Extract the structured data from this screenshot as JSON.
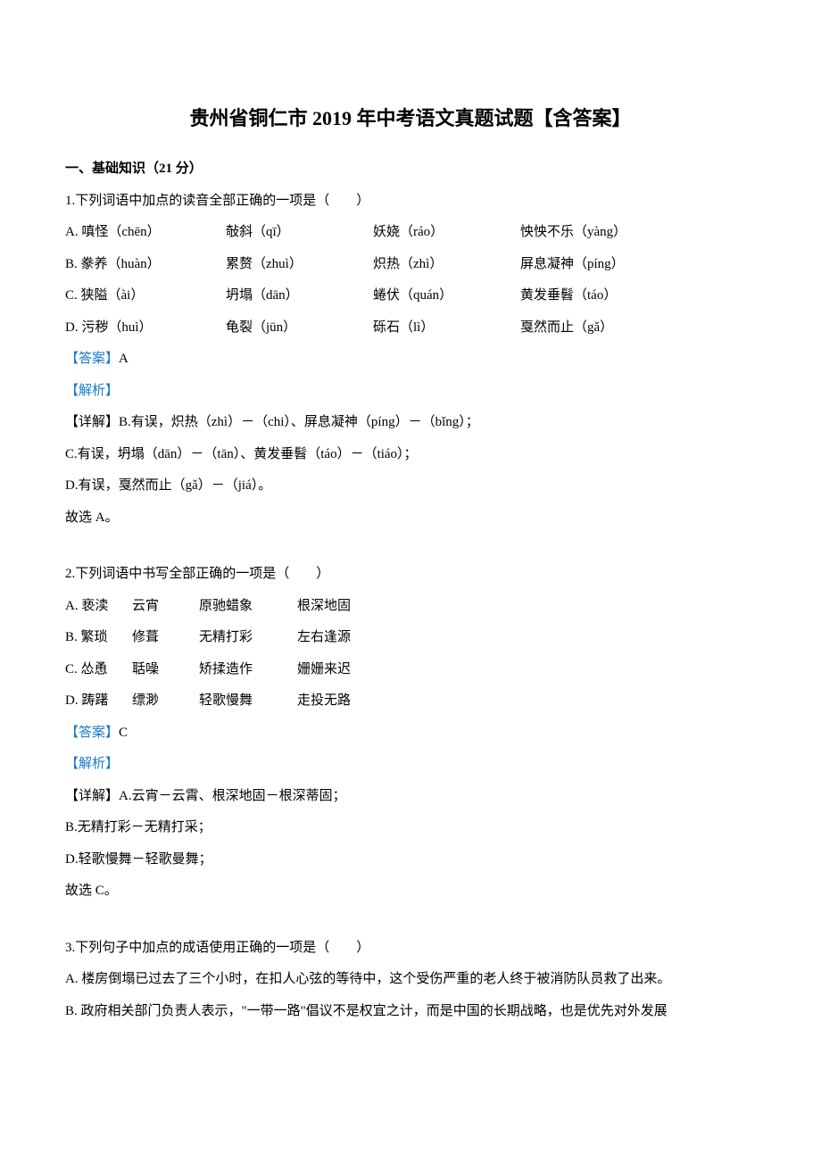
{
  "title": "贵州省铜仁市 2019 年中考语文真题试题【含答案】",
  "section1": {
    "heading": "一、基础知识（21 分）"
  },
  "q1": {
    "stem": "1.下列词语中加点的读音全部正确的一项是（　　）",
    "rows": [
      {
        "a": "A. 嗔怪（chēn）",
        "b": "敧斜（qī）",
        "c": "妖娆（ráo）",
        "d": "怏怏不乐（yàng）"
      },
      {
        "a": "B. 豢养（huàn）",
        "b": "累赘（zhuì）",
        "c": "炽热（zhì）",
        "d": "屏息凝神（píng）"
      },
      {
        "a": "C. 狭隘（ài）",
        "b": "坍塌（dān）",
        "c": "蜷伏（quán）",
        "d": "黄发垂髫（táo）"
      },
      {
        "a": "D. 污秽（huì）",
        "b": "龟裂（jūn）",
        "c": "砾石（lì）",
        "d": "戛然而止（gǎ）"
      }
    ],
    "answerLabel": "【答案】",
    "answerValue": "A",
    "analysisLabel": "【解析】",
    "details": [
      "【详解】B.有误，炽热（zhì）－（chi）、屏息凝神（píng）－（bǐng）；",
      "C.有误，坍塌（dān）－（tān）、黄发垂髫（táo）－（tiáo）；",
      "D.有误，戛然而止（gǎ）－（jiá）。",
      "故选 A。"
    ]
  },
  "q2": {
    "stem": "2.下列词语中书写全部正确的一项是（　　）",
    "rows": [
      {
        "a": "A. 亵渎",
        "b": "云宵",
        "c": "原驰蜡象",
        "d": "根深地固"
      },
      {
        "a": "B. 繁琐",
        "b": "修葺",
        "c": "无精打彩",
        "d": "左右逢源"
      },
      {
        "a": "C. 怂恿",
        "b": "聒噪",
        "c": "矫揉造作",
        "d": "姗姗来迟"
      },
      {
        "a": "D. 踌躇",
        "b": "缥渺",
        "c": "轻歌慢舞",
        "d": "走投无路"
      }
    ],
    "answerLabel": "【答案】",
    "answerValue": "C",
    "analysisLabel": "【解析】",
    "details": [
      "【详解】A.云宵－云霄、根深地固－根深蒂固；",
      "B.无精打彩－无精打采；",
      "D.轻歌慢舞－轻歌曼舞；",
      "故选 C。"
    ]
  },
  "q3": {
    "stem": "3.下列句子中加点的成语使用正确的一项是（　　）",
    "options": [
      "A. 楼房倒塌已过去了三个小时，在扣人心弦的等待中，这个受伤严重的老人终于被消防队员救了出来。",
      "B. 政府相关部门负责人表示，\"一带一路\"倡议不是权宜之计，而是中国的长期战略，也是优先对外发展"
    ]
  },
  "colors": {
    "text": "#000000",
    "link": "#1a7bc9",
    "background": "#ffffff"
  }
}
